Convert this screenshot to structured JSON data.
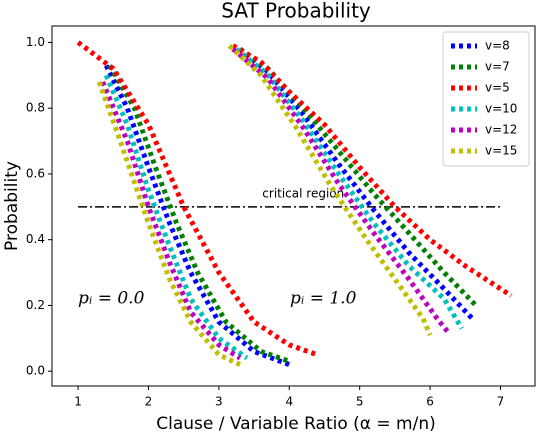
{
  "chart_data": {
    "type": "line",
    "title": "SAT Probability",
    "x_label": "Clause / Variable Ratio (α = m/n)",
    "y_label": "Probability",
    "xlim": [
      0.63,
      7.49
    ],
    "ylim": [
      -0.045,
      1.05
    ],
    "xticks": [
      1,
      2,
      3,
      4,
      5,
      6,
      7
    ],
    "yticks": [
      {
        "value": 0,
        "label": "0.0"
      },
      {
        "value": 0.2,
        "label": "0.2"
      },
      {
        "value": 0.4,
        "label": "0.4"
      },
      {
        "value": 0.6,
        "label": "0.6"
      },
      {
        "value": 0.8,
        "label": "0.8"
      },
      {
        "value": 1,
        "label": "1.0"
      }
    ],
    "legend": "upper right",
    "reference_line": {
      "y": 0.5,
      "x": [
        1,
        7
      ],
      "label": "critical region"
    },
    "annotations": [
      "pᵢ = 0.0",
      "pᵢ = 1.0"
    ],
    "series": [
      {
        "name": "v=8",
        "color": "#0000ff",
        "x": [
          1.4,
          1.7,
          2.0,
          2.3,
          2.6,
          3.0,
          3.5,
          4.0,
          null,
          3.3,
          3.7,
          4.2,
          4.7,
          5.2,
          5.7,
          6.2,
          6.6
        ],
        "values": [
          0.93,
          0.8,
          0.62,
          0.45,
          0.3,
          0.15,
          0.06,
          0.02,
          null,
          0.98,
          0.91,
          0.78,
          0.63,
          0.49,
          0.36,
          0.25,
          0.16
        ]
      },
      {
        "name": "v=7",
        "color": "#008000",
        "x": [
          1.45,
          1.8,
          2.1,
          2.4,
          2.7,
          3.1,
          3.6,
          4.0,
          null,
          3.3,
          3.7,
          4.2,
          4.7,
          5.2,
          5.7,
          6.2,
          6.65
        ],
        "values": [
          0.93,
          0.8,
          0.62,
          0.45,
          0.3,
          0.15,
          0.06,
          0.03,
          null,
          0.98,
          0.92,
          0.8,
          0.67,
          0.54,
          0.42,
          0.3,
          0.2
        ]
      },
      {
        "name": "v=5",
        "color": "#ff0000",
        "x": [
          1.0,
          1.5,
          2.0,
          2.5,
          3.0,
          3.5,
          4.0,
          4.4,
          null,
          3.2,
          3.6,
          4.0,
          4.5,
          5.0,
          5.5,
          6.0,
          6.5,
          7.15
        ],
        "values": [
          1.0,
          0.92,
          0.75,
          0.5,
          0.3,
          0.15,
          0.08,
          0.05,
          null,
          0.99,
          0.94,
          0.85,
          0.75,
          0.62,
          0.5,
          0.4,
          0.32,
          0.23
        ]
      },
      {
        "name": "v=10",
        "color": "#00bfbf",
        "x": [
          1.4,
          1.7,
          2.0,
          2.3,
          2.6,
          3.0,
          3.4,
          null,
          3.25,
          3.7,
          4.2,
          4.7,
          5.2,
          5.7,
          6.2,
          6.45
        ],
        "values": [
          0.9,
          0.75,
          0.55,
          0.38,
          0.22,
          0.1,
          0.04,
          null,
          0.98,
          0.9,
          0.76,
          0.6,
          0.45,
          0.32,
          0.22,
          0.13
        ]
      },
      {
        "name": "v=12",
        "color": "#bf00bf",
        "x": [
          1.35,
          1.7,
          2.0,
          2.3,
          2.6,
          3.0,
          3.3,
          null,
          3.2,
          3.7,
          4.2,
          4.7,
          5.2,
          5.7,
          6.1,
          6.25
        ],
        "values": [
          0.88,
          0.7,
          0.5,
          0.33,
          0.18,
          0.08,
          0.04,
          null,
          0.98,
          0.89,
          0.74,
          0.57,
          0.42,
          0.28,
          0.16,
          0.12
        ]
      },
      {
        "name": "v=15",
        "color": "#bfbf00",
        "x": [
          1.3,
          1.6,
          2.0,
          2.3,
          2.6,
          3.0,
          3.3,
          null,
          3.15,
          3.6,
          4.1,
          4.6,
          5.1,
          5.6,
          5.9,
          6.0
        ],
        "values": [
          0.88,
          0.7,
          0.45,
          0.28,
          0.15,
          0.05,
          0.02,
          null,
          0.99,
          0.9,
          0.74,
          0.56,
          0.4,
          0.25,
          0.16,
          0.11
        ]
      }
    ]
  }
}
